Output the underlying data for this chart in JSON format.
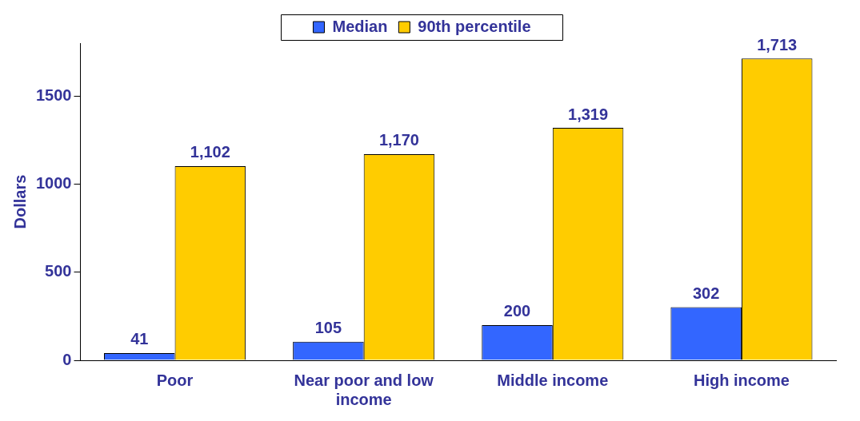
{
  "chart_data": {
    "type": "bar",
    "ylabel": "Dollars",
    "categories": [
      "Poor",
      "Near poor and low income",
      "Middle income",
      "High income"
    ],
    "series": [
      {
        "name": "Median",
        "color": "#3366ff",
        "values": [
          41,
          105,
          200,
          302
        ],
        "value_labels": [
          "41",
          "105",
          "200",
          "302"
        ]
      },
      {
        "name": "90th percentile",
        "color": "#ffcc00",
        "values": [
          1102,
          1170,
          1319,
          1713
        ],
        "value_labels": [
          "1,102",
          "1,170",
          "1,319",
          "1,713"
        ]
      }
    ],
    "ylim": [
      0,
      1800
    ],
    "yticks": [
      0,
      500,
      1000,
      1500
    ],
    "grid": false,
    "legend": "top"
  }
}
